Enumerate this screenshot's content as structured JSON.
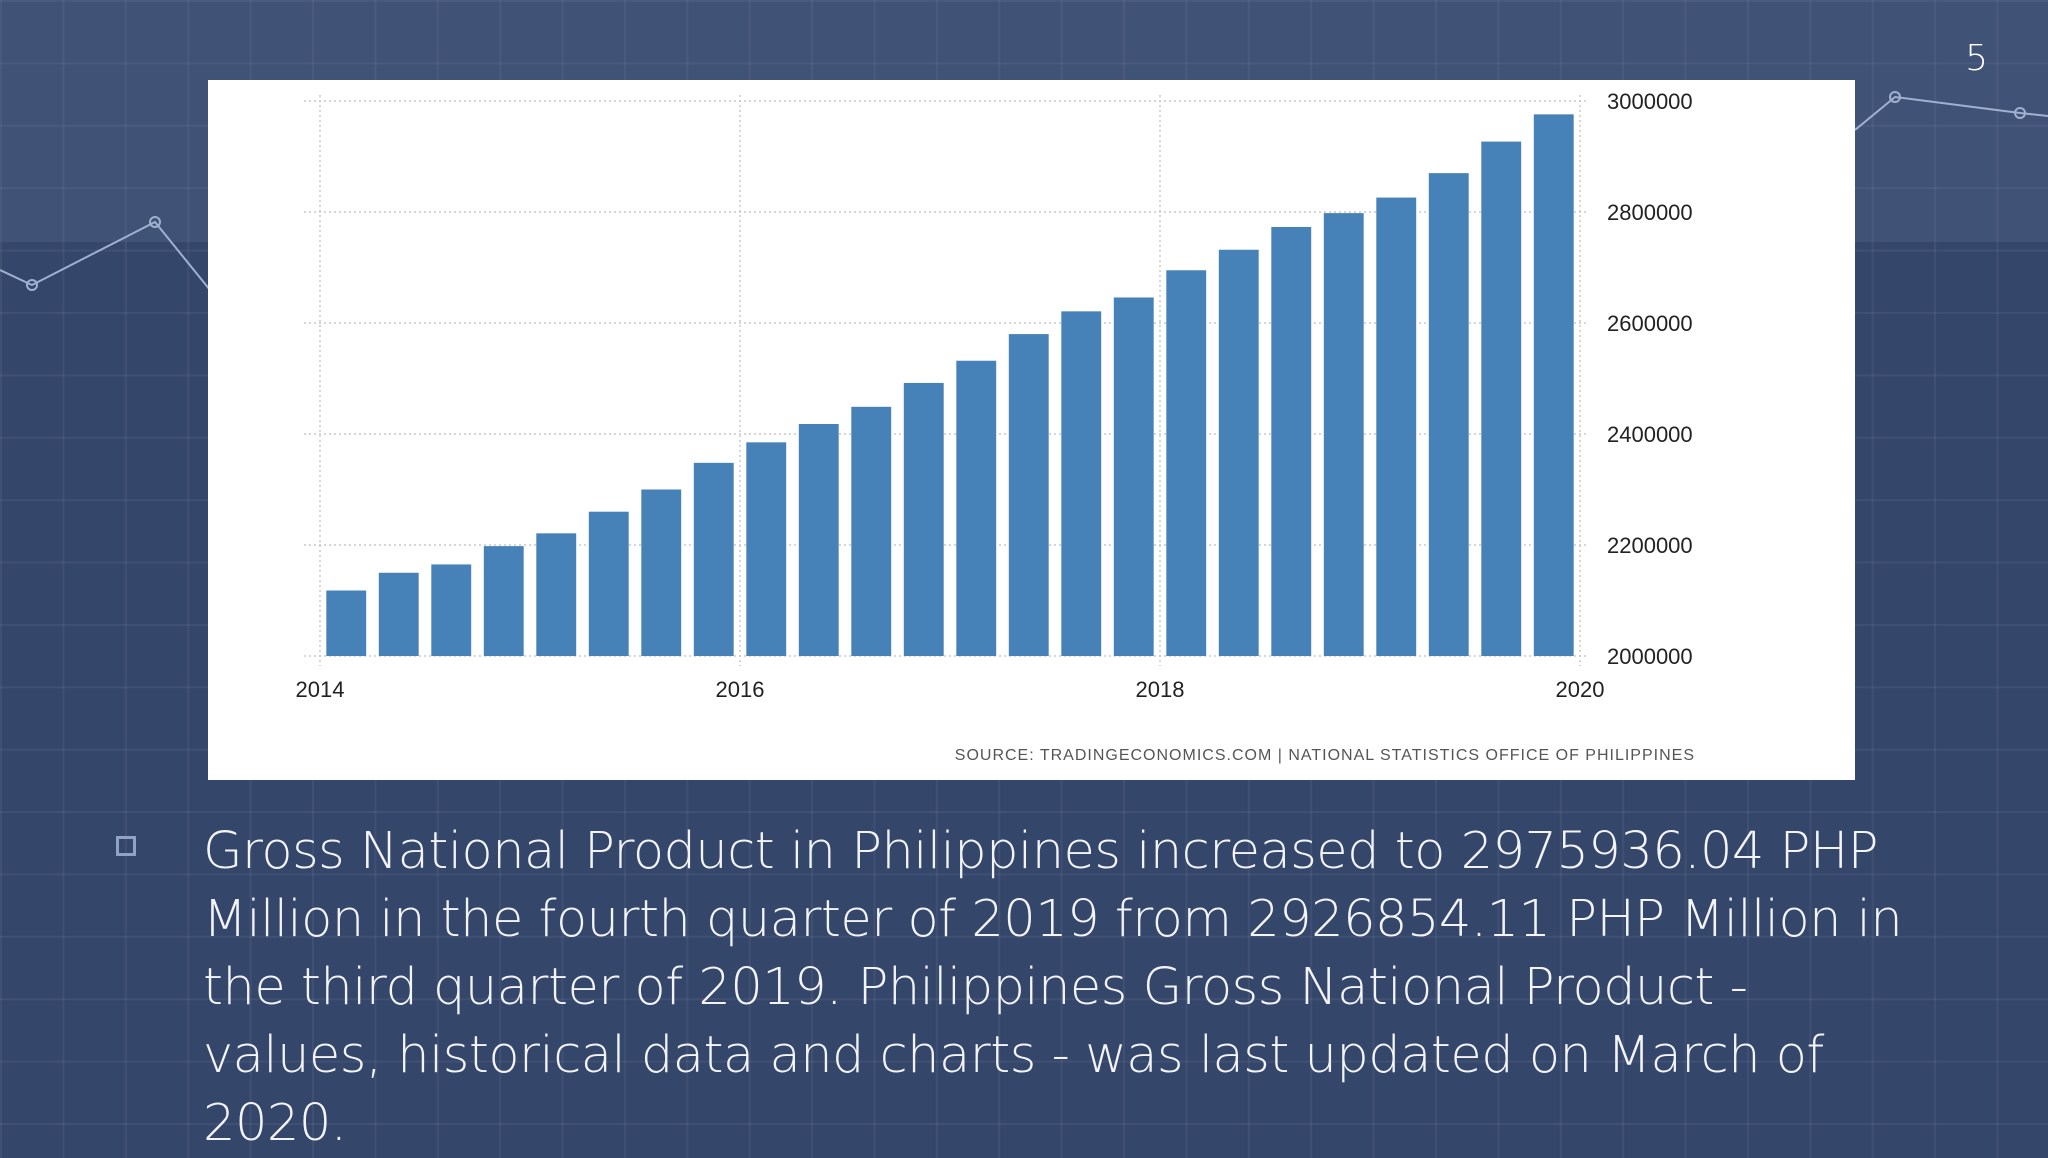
{
  "slide": {
    "number": "5",
    "paragraph": "Gross National Product in Philippines increased to 2975936.04 PHP Million in the fourth quarter of 2019 from 2926854.11 PHP Million in the third quarter of 2019. Philippines Gross National Product - values, historical data and charts - was last updated on March of 2020."
  },
  "colors": {
    "background": "#35466b",
    "bar": "#4682b8",
    "card": "#ffffff"
  },
  "chart_data": {
    "type": "bar",
    "title": "",
    "xlabel": "",
    "ylabel": "",
    "x_ticks": [
      "2014",
      "2016",
      "2018",
      "2020"
    ],
    "y_ticks": [
      "3000000",
      "2800000",
      "2600000",
      "2400000",
      "2200000",
      "2000000"
    ],
    "ylim": [
      2000000,
      3000000
    ],
    "y_axis_position": "right",
    "grid": true,
    "categories": [
      "2014 Q1",
      "2014 Q2",
      "2014 Q3",
      "2014 Q4",
      "2015 Q1",
      "2015 Q2",
      "2015 Q3",
      "2015 Q4",
      "2016 Q1",
      "2016 Q2",
      "2016 Q3",
      "2016 Q4",
      "2017 Q1",
      "2017 Q2",
      "2017 Q3",
      "2017 Q4",
      "2018 Q1",
      "2018 Q2",
      "2018 Q3",
      "2018 Q4",
      "2019 Q1",
      "2019 Q2",
      "2019 Q3",
      "2019 Q4"
    ],
    "values": [
      2118000,
      2150000,
      2165000,
      2198000,
      2221000,
      2260000,
      2300000,
      2348000,
      2385000,
      2418000,
      2449000,
      2492000,
      2532000,
      2580000,
      2621000,
      2646000,
      2695000,
      2732000,
      2773000,
      2798000,
      2826000,
      2870000,
      2926854.11,
      2975936.04
    ],
    "source": "SOURCE: TRADINGECONOMICS.COM | NATIONAL STATISTICS OFFICE OF PHILIPPINES"
  }
}
